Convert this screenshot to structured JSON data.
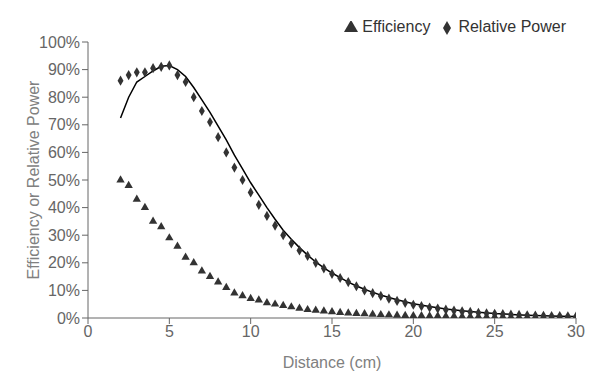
{
  "chart_data": {
    "type": "scatter",
    "xlabel": "Distance (cm)",
    "ylabel": "Efficiency or Relative Power",
    "xlim": [
      0,
      30
    ],
    "ylim": [
      0,
      1.0
    ],
    "xticks": [
      0,
      5,
      10,
      15,
      20,
      25,
      30
    ],
    "yticks": [
      {
        "value": 0,
        "label": "0%"
      },
      {
        "value": 0.1,
        "label": "10%"
      },
      {
        "value": 0.2,
        "label": "20%"
      },
      {
        "value": 0.3,
        "label": "30%"
      },
      {
        "value": 0.4,
        "label": "40%"
      },
      {
        "value": 0.5,
        "label": "50%"
      },
      {
        "value": 0.6,
        "label": "60%"
      },
      {
        "value": 0.7,
        "label": "70%"
      },
      {
        "value": 0.8,
        "label": "80%"
      },
      {
        "value": 0.9,
        "label": "90%"
      },
      {
        "value": 1.0,
        "label": "100%"
      }
    ],
    "grid": false,
    "legend": "upper right",
    "series": [
      {
        "type": "line",
        "color": "#000000",
        "x": [
          2.0,
          2.5,
          3.0,
          3.5,
          4.0,
          4.5,
          5.0,
          5.5,
          6.0,
          6.5,
          7.0,
          7.5,
          8.0,
          8.5,
          9.0,
          9.5,
          10.0,
          10.5,
          11.0,
          11.5,
          12.0,
          12.5,
          13.0,
          13.5,
          14.0,
          14.5,
          15.0,
          15.5,
          16.0,
          16.5,
          17.0,
          17.5,
          18.0,
          18.5,
          19.0,
          19.5,
          20.0,
          21.0,
          22.0,
          23.0,
          24.0,
          25.0,
          26.0,
          27.0,
          28.0,
          29.0,
          30.0
        ],
        "values": [
          0.725,
          0.8,
          0.855,
          0.875,
          0.895,
          0.912,
          0.915,
          0.9,
          0.875,
          0.835,
          0.79,
          0.745,
          0.695,
          0.645,
          0.59,
          0.54,
          0.49,
          0.445,
          0.4,
          0.358,
          0.318,
          0.285,
          0.255,
          0.228,
          0.203,
          0.182,
          0.163,
          0.146,
          0.13,
          0.116,
          0.104,
          0.093,
          0.083,
          0.074,
          0.066,
          0.059,
          0.052,
          0.042,
          0.033,
          0.026,
          0.021,
          0.016,
          0.013,
          0.01,
          0.008,
          0.006,
          0.005
        ]
      },
      {
        "name": "Efficiency",
        "type": "scatter",
        "marker": "triangle",
        "color": "#333333",
        "x": [
          2.0,
          2.5,
          3.0,
          3.5,
          4.0,
          4.5,
          5.0,
          5.5,
          6.0,
          6.5,
          7.0,
          7.5,
          8.0,
          8.5,
          9.0,
          9.5,
          10.0,
          10.5,
          11.0,
          11.5,
          12.0,
          12.5,
          13.0,
          13.5,
          14.0,
          14.5,
          15.0,
          15.5,
          16.0,
          16.5,
          17.0,
          17.5,
          18.0,
          18.5,
          19.0,
          19.5,
          20.0,
          20.5,
          21.0,
          21.5,
          22.0,
          22.5,
          23.0,
          23.5,
          24.0,
          24.5,
          25.0,
          25.5,
          26.0,
          26.5,
          27.0,
          27.5,
          28.0,
          28.5,
          29.0,
          29.5,
          30.0
        ],
        "values": [
          0.5,
          0.48,
          0.43,
          0.4,
          0.35,
          0.33,
          0.29,
          0.26,
          0.22,
          0.2,
          0.17,
          0.15,
          0.13,
          0.11,
          0.09,
          0.08,
          0.07,
          0.065,
          0.055,
          0.05,
          0.045,
          0.04,
          0.035,
          0.03,
          0.028,
          0.025,
          0.022,
          0.02,
          0.018,
          0.016,
          0.015,
          0.013,
          0.012,
          0.011,
          0.01,
          0.009,
          0.008,
          0.008,
          0.007,
          0.007,
          0.006,
          0.006,
          0.005,
          0.005,
          0.005,
          0.004,
          0.004,
          0.004,
          0.003,
          0.003,
          0.003,
          0.003,
          0.003,
          0.002,
          0.002,
          0.002,
          0.002
        ]
      },
      {
        "name": "Relative Power",
        "type": "scatter",
        "marker": "diamond",
        "color": "#333333",
        "x": [
          2.0,
          2.5,
          3.0,
          3.5,
          4.0,
          4.5,
          5.0,
          5.5,
          6.0,
          6.5,
          7.0,
          7.5,
          8.0,
          8.5,
          9.0,
          9.5,
          10.0,
          10.5,
          11.0,
          11.5,
          12.0,
          12.5,
          13.0,
          13.5,
          14.0,
          14.5,
          15.0,
          15.5,
          16.0,
          16.5,
          17.0,
          17.5,
          18.0,
          18.5,
          19.0,
          19.5,
          20.0,
          20.5,
          21.0,
          21.5,
          22.0,
          22.5,
          23.0,
          23.5,
          24.0,
          24.5,
          25.0,
          25.5,
          26.0,
          26.5,
          27.0,
          27.5,
          28.0,
          28.5,
          29.0,
          29.5,
          30.0
        ],
        "values": [
          0.86,
          0.88,
          0.89,
          0.89,
          0.905,
          0.91,
          0.915,
          0.88,
          0.855,
          0.8,
          0.75,
          0.71,
          0.655,
          0.6,
          0.545,
          0.5,
          0.455,
          0.41,
          0.37,
          0.335,
          0.3,
          0.27,
          0.245,
          0.225,
          0.2,
          0.18,
          0.16,
          0.145,
          0.13,
          0.115,
          0.1,
          0.09,
          0.08,
          0.07,
          0.062,
          0.055,
          0.048,
          0.043,
          0.038,
          0.034,
          0.03,
          0.027,
          0.024,
          0.022,
          0.019,
          0.017,
          0.015,
          0.014,
          0.012,
          0.011,
          0.01,
          0.009,
          0.008,
          0.007,
          0.007,
          0.006,
          0.005
        ]
      }
    ]
  }
}
